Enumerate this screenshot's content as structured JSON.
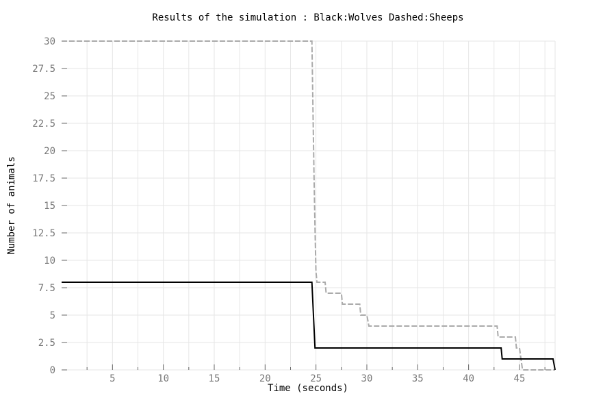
{
  "chart_data": {
    "type": "line",
    "title": "Results of the simulation : Black:Wolves Dashed:Sheeps",
    "xlabel": "Time (seconds)",
    "ylabel": "Number of animals",
    "xlim": [
      0,
      48.5
    ],
    "ylim": [
      0,
      30
    ],
    "x_ticks": [
      5,
      10,
      15,
      20,
      25,
      30,
      35,
      40,
      45
    ],
    "x_tick_labels": [
      "5",
      "10",
      "15",
      "20",
      "25",
      "30",
      "35",
      "40",
      "45"
    ],
    "y_ticks": [
      0,
      2.5,
      5,
      7.5,
      10,
      12.5,
      15,
      17.5,
      20,
      22.5,
      25,
      27.5,
      30
    ],
    "y_tick_labels": [
      "0",
      "2.5",
      "5",
      "7.5",
      "10",
      "12.5",
      "15",
      "17.5",
      "20",
      "22.5",
      "25",
      "27.5",
      "30"
    ],
    "grid": true,
    "series": [
      {
        "name": "Wolves",
        "style": "solid",
        "color": "#000000",
        "points": [
          [
            0,
            8
          ],
          [
            24.6,
            8
          ],
          [
            24.7,
            6
          ],
          [
            24.9,
            2
          ],
          [
            43.2,
            2
          ],
          [
            43.3,
            1
          ],
          [
            48.3,
            1
          ],
          [
            48.5,
            0
          ]
        ]
      },
      {
        "name": "Sheeps",
        "style": "dashed",
        "color": "#aaaaaa",
        "points": [
          [
            0,
            30
          ],
          [
            24.6,
            30
          ],
          [
            24.7,
            24
          ],
          [
            24.8,
            18
          ],
          [
            24.9,
            13
          ],
          [
            25.0,
            9
          ],
          [
            25.1,
            8
          ],
          [
            25.9,
            8
          ],
          [
            26.0,
            7
          ],
          [
            27.5,
            7
          ],
          [
            27.6,
            6
          ],
          [
            29.3,
            6
          ],
          [
            29.4,
            5
          ],
          [
            30.0,
            5
          ],
          [
            30.2,
            4
          ],
          [
            42.8,
            4
          ],
          [
            42.9,
            3
          ],
          [
            44.6,
            3
          ],
          [
            44.7,
            2
          ],
          [
            45.0,
            2
          ],
          [
            45.3,
            0
          ],
          [
            48.5,
            0
          ]
        ]
      }
    ]
  }
}
